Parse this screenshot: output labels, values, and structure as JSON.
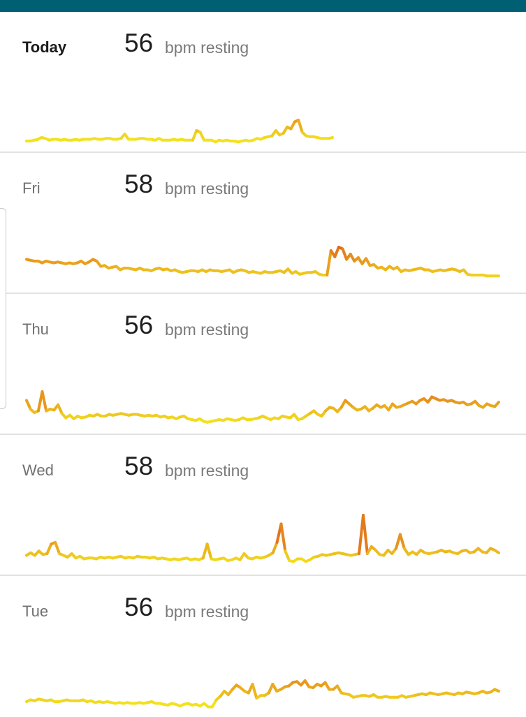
{
  "colors": {
    "top_bar": "#005f73",
    "line_low": "#f2e21e",
    "line_high": "#e0601c"
  },
  "days": [
    {
      "label": "Today",
      "current": true,
      "bpm": "56",
      "unit": "bpm resting",
      "trend": [
        4,
        4,
        5,
        6,
        8,
        7,
        5,
        6,
        6,
        5,
        6,
        5,
        5,
        6,
        5,
        6,
        6,
        6,
        7,
        6,
        6,
        7,
        7,
        6,
        6,
        7,
        12,
        6,
        6,
        6,
        7,
        7,
        6,
        6,
        5,
        7,
        5,
        5,
        5,
        6,
        5,
        6,
        5,
        5,
        5,
        16,
        14,
        5,
        5,
        5,
        3,
        5,
        4,
        5,
        4,
        4,
        3,
        4,
        5,
        4,
        5,
        7,
        6,
        8,
        9,
        10,
        16,
        11,
        13,
        20,
        18,
        26,
        28,
        14,
        10,
        9,
        9,
        8,
        7,
        7,
        7,
        8
      ]
    },
    {
      "label": "Fri",
      "current": false,
      "bpm": "58",
      "unit": "bpm resting",
      "trend": [
        30,
        29,
        28,
        28,
        26,
        28,
        27,
        26,
        27,
        26,
        25,
        26,
        25,
        26,
        28,
        25,
        27,
        30,
        28,
        22,
        23,
        20,
        21,
        22,
        18,
        20,
        20,
        19,
        18,
        20,
        18,
        18,
        17,
        19,
        20,
        18,
        19,
        17,
        18,
        16,
        15,
        16,
        17,
        17,
        16,
        18,
        16,
        18,
        17,
        17,
        16,
        17,
        18,
        15,
        17,
        18,
        17,
        15,
        16,
        15,
        14,
        16,
        15,
        15,
        16,
        17,
        15,
        19,
        14,
        16,
        13,
        14,
        15,
        15,
        16,
        13,
        12,
        12,
        40,
        33,
        44,
        42,
        30,
        36,
        28,
        32,
        25,
        31,
        23,
        24,
        20,
        21,
        18,
        22,
        19,
        21,
        16,
        18,
        17,
        18,
        19,
        20,
        18,
        18,
        16,
        17,
        18,
        17,
        18,
        19,
        18,
        16,
        18,
        13,
        12,
        12,
        12,
        12,
        11,
        11,
        11,
        11
      ]
    },
    {
      "label": "Thu",
      "current": false,
      "bpm": "56",
      "unit": "bpm resting",
      "trend": [
        30,
        20,
        16,
        18,
        40,
        18,
        20,
        19,
        25,
        15,
        10,
        13,
        9,
        12,
        10,
        11,
        13,
        12,
        14,
        12,
        12,
        14,
        13,
        14,
        15,
        14,
        13,
        14,
        14,
        13,
        12,
        13,
        12,
        13,
        11,
        12,
        10,
        11,
        9,
        11,
        12,
        9,
        8,
        7,
        9,
        6,
        5,
        6,
        7,
        8,
        7,
        9,
        8,
        7,
        8,
        10,
        8,
        8,
        9,
        10,
        12,
        10,
        8,
        10,
        9,
        12,
        11,
        10,
        14,
        8,
        9,
        12,
        15,
        18,
        14,
        12,
        18,
        22,
        21,
        17,
        22,
        30,
        26,
        22,
        19,
        20,
        23,
        18,
        21,
        25,
        22,
        24,
        19,
        26,
        22,
        23,
        25,
        27,
        29,
        26,
        30,
        32,
        28,
        34,
        32,
        30,
        31,
        29,
        30,
        28,
        27,
        28,
        25,
        26,
        29,
        24,
        22,
        26,
        24,
        23,
        28
      ]
    },
    {
      "label": "Wed",
      "current": false,
      "bpm": "58",
      "unit": "bpm resting",
      "trend": [
        14,
        17,
        14,
        19,
        15,
        16,
        27,
        29,
        16,
        14,
        12,
        16,
        11,
        13,
        10,
        11,
        11,
        10,
        12,
        11,
        12,
        11,
        12,
        13,
        11,
        12,
        11,
        13,
        12,
        12,
        11,
        12,
        10,
        11,
        10,
        9,
        10,
        9,
        10,
        11,
        9,
        10,
        9,
        11,
        27,
        10,
        9,
        10,
        11,
        8,
        9,
        11,
        9,
        16,
        11,
        10,
        12,
        11,
        12,
        14,
        17,
        29,
        50,
        19,
        8,
        7,
        10,
        10,
        7,
        9,
        12,
        13,
        15,
        14,
        15,
        16,
        17,
        16,
        15,
        14,
        15,
        16,
        60,
        16,
        24,
        20,
        15,
        14,
        20,
        16,
        22,
        38,
        22,
        15,
        18,
        15,
        20,
        17,
        16,
        17,
        18,
        20,
        18,
        19,
        17,
        16,
        19,
        20,
        17,
        18,
        22,
        18,
        17,
        22,
        20,
        17
      ]
    },
    {
      "label": "Tue",
      "current": false,
      "bpm": "56",
      "unit": "bpm resting",
      "trend": [
        8,
        10,
        9,
        11,
        10,
        9,
        10,
        8,
        8,
        9,
        10,
        9,
        9,
        9,
        10,
        8,
        9,
        7,
        8,
        7,
        8,
        7,
        6,
        7,
        6,
        7,
        6,
        6,
        7,
        6,
        7,
        8,
        6,
        6,
        5,
        4,
        6,
        5,
        3,
        5,
        6,
        4,
        5,
        3,
        6,
        2,
        2,
        10,
        14,
        20,
        16,
        22,
        27,
        24,
        20,
        18,
        28,
        12,
        15,
        15,
        18,
        28,
        20,
        22,
        25,
        26,
        30,
        31,
        27,
        32,
        25,
        24,
        28,
        26,
        30,
        22,
        22,
        26,
        18,
        17,
        16,
        13,
        14,
        15,
        15,
        14,
        16,
        13,
        13,
        14,
        13,
        13,
        13,
        15,
        13,
        14,
        15,
        16,
        17,
        16,
        18,
        17,
        16,
        17,
        18,
        17,
        16,
        18,
        17,
        19,
        18,
        17,
        18,
        20,
        18,
        19,
        22,
        20
      ]
    }
  ]
}
